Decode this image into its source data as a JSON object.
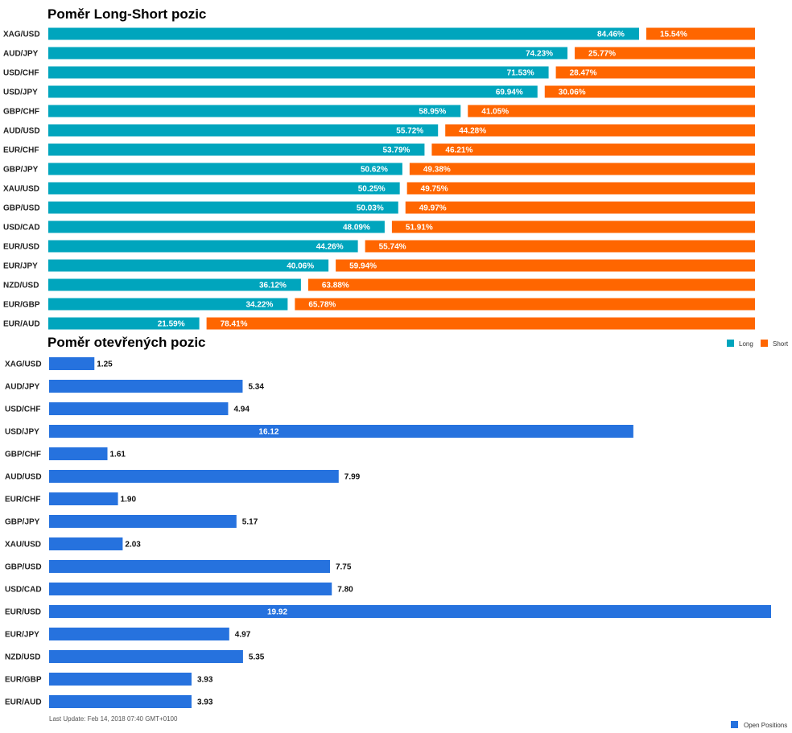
{
  "ratio_title": "Poměr Long-Short pozic",
  "open_title": "Poměr otevřených pozic",
  "footer": "Last Update: Feb 14, 2018 07:40 GMT+0100",
  "colors": {
    "long": "#00a5bd",
    "short": "#ff6600",
    "open": "#2672de"
  },
  "chart_data": [
    {
      "type": "bar",
      "stacked": true,
      "orientation": "horizontal",
      "title": "Poměr Long-Short pozic",
      "categories": [
        "XAG/USD",
        "AUD/JPY",
        "USD/CHF",
        "USD/JPY",
        "GBP/CHF",
        "AUD/USD",
        "EUR/CHF",
        "GBP/JPY",
        "XAU/USD",
        "GBP/USD",
        "USD/CAD",
        "EUR/USD",
        "EUR/JPY",
        "NZD/USD",
        "EUR/GBP",
        "EUR/AUD"
      ],
      "series": [
        {
          "name": "Long",
          "values": [
            84.46,
            74.23,
            71.53,
            69.94,
            58.95,
            55.72,
            53.79,
            50.62,
            50.25,
            50.03,
            48.09,
            44.26,
            40.06,
            36.12,
            34.22,
            21.59
          ],
          "labels": [
            "84.46%",
            "74.23%",
            "71.53%",
            "69.94%",
            "58.95%",
            "55.72%",
            "53.79%",
            "50.62%",
            "50.25%",
            "50.03%",
            "48.09%",
            "44.26%",
            "40.06%",
            "36.12%",
            "34.22%",
            "21.59%"
          ]
        },
        {
          "name": "Short",
          "values": [
            15.54,
            25.77,
            28.47,
            30.06,
            41.05,
            44.28,
            46.21,
            49.38,
            49.75,
            49.97,
            51.91,
            55.74,
            59.94,
            63.88,
            65.78,
            78.41
          ],
          "labels": [
            "15.54%",
            "25.77%",
            "28.47%",
            "30.06%",
            "41.05%",
            "44.28%",
            "46.21%",
            "49.38%",
            "49.75%",
            "49.97%",
            "51.91%",
            "55.74%",
            "59.94%",
            "63.88%",
            "65.78%",
            "78.41%"
          ]
        }
      ],
      "xlim": [
        0,
        100
      ],
      "legend": "bottom-right"
    },
    {
      "type": "bar",
      "orientation": "horizontal",
      "title": "Poměr otevřených pozic",
      "categories": [
        "XAG/USD",
        "AUD/JPY",
        "USD/CHF",
        "USD/JPY",
        "GBP/CHF",
        "AUD/USD",
        "EUR/CHF",
        "GBP/JPY",
        "XAU/USD",
        "GBP/USD",
        "USD/CAD",
        "EUR/USD",
        "EUR/JPY",
        "NZD/USD",
        "EUR/GBP",
        "EUR/AUD"
      ],
      "series": [
        {
          "name": "Open Positions",
          "values": [
            1.25,
            5.34,
            4.94,
            16.12,
            1.61,
            7.99,
            1.9,
            5.17,
            2.03,
            7.75,
            7.8,
            19.92,
            4.97,
            5.35,
            3.93,
            3.93
          ],
          "labels": [
            "1.25",
            "5.34",
            "4.94",
            "16.12",
            "1.61",
            "7.99",
            "1.90",
            "5.17",
            "2.03",
            "7.75",
            "7.80",
            "19.92",
            "4.97",
            "5.35",
            "3.93",
            "3.93"
          ]
        }
      ],
      "legend": "bottom-right"
    }
  ]
}
